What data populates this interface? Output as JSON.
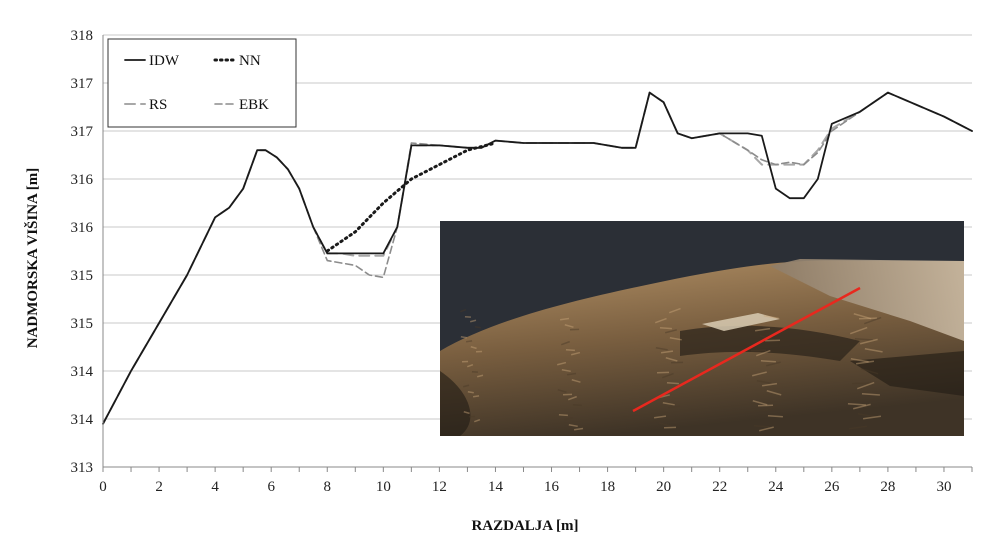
{
  "chart_data": {
    "type": "line",
    "xlabel": "RAZDALJA [m]",
    "ylabel": "NADMORSKA VIŠINA [m]",
    "x_ticks": [
      "0",
      "2",
      "4",
      "6",
      "8",
      "10",
      "12",
      "14",
      "16",
      "18",
      "20",
      "22",
      "24",
      "26",
      "28",
      "30"
    ],
    "y_ticks": [
      "313",
      "314",
      "314",
      "315",
      "315",
      "316",
      "316",
      "317",
      "317",
      "318"
    ],
    "y_value_per_gridline": 0.5,
    "y_axis_range_in_gridlines": [
      0,
      9
    ],
    "xlim": [
      0,
      31
    ],
    "grid": true,
    "legend_position": "top-left",
    "series": [
      {
        "name": "IDW",
        "style": "solid",
        "color": "#1a1a1a",
        "x": [
          0,
          1,
          2,
          3,
          4,
          4.5,
          5,
          5.5,
          5.8,
          6.2,
          6.6,
          7,
          7.5,
          8,
          8.5,
          9,
          9.5,
          10,
          10.5,
          11,
          12,
          13,
          13.5,
          14,
          15,
          16,
          17,
          17.5,
          18,
          18.5,
          19,
          19.5,
          20,
          20.5,
          21,
          22,
          23,
          23.5,
          24,
          24.5,
          25,
          25.5,
          26,
          27,
          28,
          29,
          30,
          31
        ],
        "y": [
          0.9,
          2.0,
          3.0,
          4.0,
          5.2,
          5.4,
          5.8,
          6.6,
          6.6,
          6.45,
          6.2,
          5.8,
          5.0,
          4.45,
          4.45,
          4.45,
          4.45,
          4.45,
          5.0,
          6.7,
          6.7,
          6.65,
          6.65,
          6.8,
          6.75,
          6.75,
          6.75,
          6.75,
          6.7,
          6.65,
          6.65,
          7.8,
          7.6,
          6.95,
          6.85,
          6.95,
          6.95,
          6.9,
          5.8,
          5.6,
          5.6,
          6.0,
          7.15,
          7.4,
          7.8,
          7.55,
          7.3,
          7.0
        ]
      },
      {
        "name": "NN",
        "style": "dotted",
        "color": "#1a1a1a",
        "x": [
          8,
          9,
          10,
          11,
          12,
          13,
          14
        ],
        "y": [
          4.5,
          4.9,
          5.5,
          6.0,
          6.3,
          6.6,
          6.75
        ]
      },
      {
        "name": "RS",
        "style": "long-dash",
        "color": "#a8a8a8",
        "x": [
          0,
          1,
          2,
          3,
          4,
          4.5,
          5,
          5.5,
          5.8,
          6.2,
          6.6,
          7,
          7.5,
          8,
          8.5,
          9,
          9.5,
          10,
          10.5,
          11,
          12,
          13,
          13.5,
          14,
          15,
          16,
          17,
          17.5,
          18,
          18.5,
          19,
          19.5,
          20,
          20.5,
          21,
          22,
          23,
          23.5,
          24,
          24.5,
          25,
          25.5,
          26,
          27,
          28,
          29,
          30,
          31
        ],
        "y": [
          0.9,
          2.0,
          3.0,
          4.0,
          5.2,
          5.4,
          5.8,
          6.6,
          6.6,
          6.45,
          6.2,
          5.8,
          5.0,
          4.45,
          4.45,
          4.4,
          4.4,
          4.4,
          5.0,
          6.7,
          6.7,
          6.65,
          6.65,
          6.8,
          6.75,
          6.75,
          6.75,
          6.75,
          6.7,
          6.65,
          6.65,
          7.8,
          7.6,
          6.95,
          6.85,
          6.95,
          6.6,
          6.3,
          6.3,
          6.3,
          6.3,
          6.6,
          7.05,
          7.4,
          7.8,
          7.55,
          7.3,
          7.0
        ]
      },
      {
        "name": "EBK",
        "style": "dashed",
        "color": "#8c8c8c",
        "x": [
          0,
          1,
          2,
          3,
          4,
          4.5,
          5,
          5.5,
          5.8,
          6.2,
          6.6,
          7,
          7.5,
          8,
          8.5,
          9,
          9.5,
          10,
          10.5,
          11,
          12,
          13,
          13.5,
          14,
          15,
          16,
          17,
          17.5,
          18,
          18.5,
          19,
          19.5,
          20,
          20.5,
          21,
          22,
          23,
          23.5,
          24,
          24.5,
          25,
          25.5,
          26,
          27,
          28,
          29,
          30,
          31
        ],
        "y": [
          0.9,
          2.0,
          3.0,
          4.0,
          5.2,
          5.4,
          5.8,
          6.6,
          6.6,
          6.45,
          6.2,
          5.8,
          5.0,
          4.3,
          4.25,
          4.2,
          4.0,
          3.95,
          5.0,
          6.75,
          6.7,
          6.65,
          6.65,
          6.8,
          6.75,
          6.75,
          6.75,
          6.75,
          6.7,
          6.65,
          6.65,
          7.8,
          7.6,
          6.95,
          6.85,
          6.95,
          6.6,
          6.4,
          6.3,
          6.35,
          6.3,
          6.55,
          7.0,
          7.4,
          7.8,
          7.55,
          7.3,
          7.0
        ]
      }
    ],
    "inset": {
      "description": "aerial 3D point-cloud view with profile line",
      "line_color": "#e8281e"
    }
  },
  "colors": {
    "grid": "#c8c8c8",
    "axis": "#888888",
    "inset_sky": "#2b2f36",
    "inset_terrain_dark": "#5e4a34",
    "inset_terrain_light": "#a98a63"
  }
}
